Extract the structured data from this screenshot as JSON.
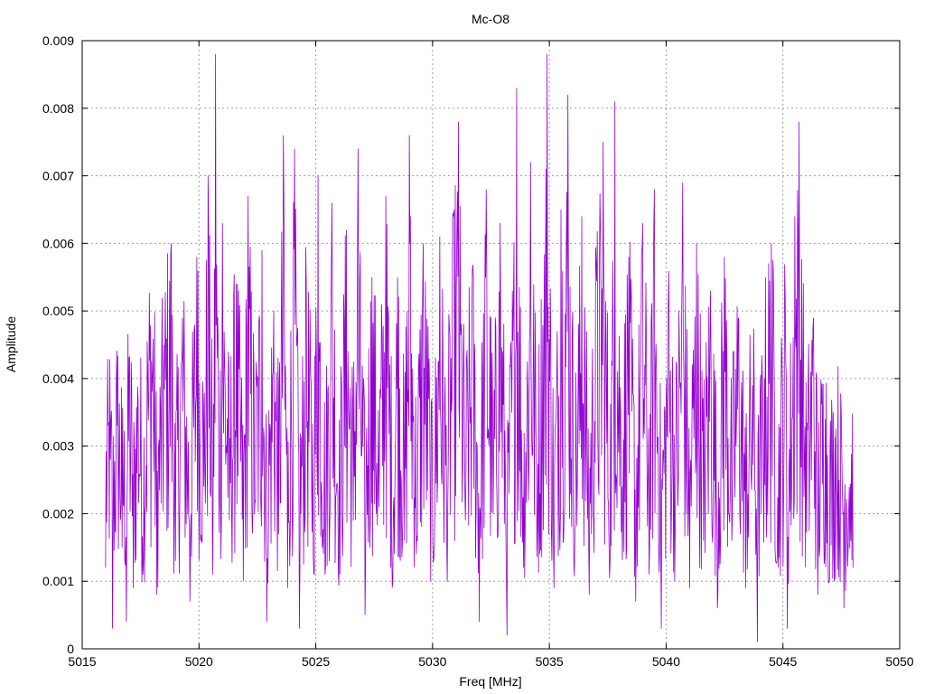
{
  "chart_data": {
    "type": "line",
    "title": "Mc-O8",
    "xlabel": "Freq [MHz]",
    "ylabel": "Amplitude",
    "xlim": [
      5015,
      5050
    ],
    "ylim": [
      0,
      0.009
    ],
    "xticks": [
      "5015",
      "5020",
      "5025",
      "5030",
      "5035",
      "5040",
      "5045",
      "5050"
    ],
    "yticks": [
      "0",
      "0.001",
      "0.002",
      "0.003",
      "0.004",
      "0.005",
      "0.006",
      "0.007",
      "0.008",
      "0.009"
    ],
    "grid": true,
    "series": [
      {
        "color": "#9400d3",
        "x_range": [
          5016,
          5048
        ],
        "points": [
          [
            5016.0,
            0.0012
          ],
          [
            5016.2,
            0.0028
          ],
          [
            5016.3,
            0.0003
          ],
          [
            5016.5,
            0.0033
          ],
          [
            5016.7,
            0.0015
          ],
          [
            5016.9,
            0.0004
          ],
          [
            5017.0,
            0.0043
          ],
          [
            5017.2,
            0.0009
          ],
          [
            5017.4,
            0.0037
          ],
          [
            5017.6,
            0.0011
          ],
          [
            5017.8,
            0.0041
          ],
          [
            5018.0,
            0.0063
          ],
          [
            5018.2,
            0.0008
          ],
          [
            5018.5,
            0.0045
          ],
          [
            5018.8,
            0.006
          ],
          [
            5019.0,
            0.0013
          ],
          [
            5019.3,
            0.0049
          ],
          [
            5019.6,
            0.0007
          ],
          [
            5019.9,
            0.0058
          ],
          [
            5020.2,
            0.0024
          ],
          [
            5020.4,
            0.007
          ],
          [
            5020.6,
            0.0011
          ],
          [
            5020.7,
            0.0088
          ],
          [
            5020.9,
            0.0027
          ],
          [
            5021.0,
            0.0063
          ],
          [
            5021.3,
            0.0019
          ],
          [
            5021.6,
            0.0054
          ],
          [
            5021.9,
            0.001
          ],
          [
            5022.1,
            0.0067
          ],
          [
            5022.4,
            0.0022
          ],
          [
            5022.7,
            0.0059
          ],
          [
            5022.9,
            0.0004
          ],
          [
            5023.2,
            0.005
          ],
          [
            5023.4,
            0.0017
          ],
          [
            5023.6,
            0.0076
          ],
          [
            5023.8,
            0.0009
          ],
          [
            5024.1,
            0.0074
          ],
          [
            5024.3,
            0.0003
          ],
          [
            5024.6,
            0.0054
          ],
          [
            5024.9,
            0.0014
          ],
          [
            5025.1,
            0.007
          ],
          [
            5025.4,
            0.0011
          ],
          [
            5025.7,
            0.0066
          ],
          [
            5026.0,
            0.0006
          ],
          [
            5026.3,
            0.0062
          ],
          [
            5026.6,
            0.0019
          ],
          [
            5026.8,
            0.0074
          ],
          [
            5027.1,
            0.0005
          ],
          [
            5027.4,
            0.0055
          ],
          [
            5027.7,
            0.0021
          ],
          [
            5028.0,
            0.0067
          ],
          [
            5028.3,
            0.001
          ],
          [
            5028.5,
            0.0055
          ],
          [
            5028.8,
            0.0016
          ],
          [
            5029.0,
            0.0076
          ],
          [
            5029.3,
            0.0014
          ],
          [
            5029.6,
            0.006
          ],
          [
            5029.9,
            0.0023
          ],
          [
            5030.0,
            0.0001
          ],
          [
            5030.3,
            0.0061
          ],
          [
            5030.6,
            0.0016
          ],
          [
            5030.9,
            0.0064
          ],
          [
            5031.1,
            0.0078
          ],
          [
            5031.4,
            0.0019
          ],
          [
            5031.7,
            0.0056
          ],
          [
            5032.0,
            0.0004
          ],
          [
            5032.3,
            0.0068
          ],
          [
            5032.6,
            0.002
          ],
          [
            5032.9,
            0.0063
          ],
          [
            5033.2,
            0.0002
          ],
          [
            5033.6,
            0.0083
          ],
          [
            5033.9,
            0.0012
          ],
          [
            5034.2,
            0.0072
          ],
          [
            5034.5,
            0.0018
          ],
          [
            5034.9,
            0.0088
          ],
          [
            5035.2,
            0.0009
          ],
          [
            5035.5,
            0.0065
          ],
          [
            5035.8,
            0.0082
          ],
          [
            5036.1,
            0.0016
          ],
          [
            5036.4,
            0.0064
          ],
          [
            5036.7,
            0.0008
          ],
          [
            5037.0,
            0.0057
          ],
          [
            5037.3,
            0.0075
          ],
          [
            5037.6,
            0.0013
          ],
          [
            5037.8,
            0.0081
          ],
          [
            5038.1,
            0.0024
          ],
          [
            5038.4,
            0.0058
          ],
          [
            5038.7,
            0.0007
          ],
          [
            5039.0,
            0.0063
          ],
          [
            5039.3,
            0.0015
          ],
          [
            5039.5,
            0.0068
          ],
          [
            5039.8,
            0.0003
          ],
          [
            5040.1,
            0.0051
          ],
          [
            5040.4,
            0.0018
          ],
          [
            5040.7,
            0.0069
          ],
          [
            5041.0,
            0.0009
          ],
          [
            5041.3,
            0.006
          ],
          [
            5041.6,
            0.0016
          ],
          [
            5041.9,
            0.0053
          ],
          [
            5042.2,
            0.0006
          ],
          [
            5042.5,
            0.0058
          ],
          [
            5042.8,
            0.0016
          ],
          [
            5043.1,
            0.0049
          ],
          [
            5043.4,
            0.0009
          ],
          [
            5043.7,
            0.0039
          ],
          [
            5043.9,
            0.0001
          ],
          [
            5044.2,
            0.004
          ],
          [
            5044.5,
            0.006
          ],
          [
            5044.8,
            0.0012
          ],
          [
            5045.1,
            0.0052
          ],
          [
            5045.2,
            0.0003
          ],
          [
            5045.5,
            0.0064
          ],
          [
            5045.7,
            0.0078
          ],
          [
            5046.0,
            0.0015
          ],
          [
            5046.3,
            0.0049
          ],
          [
            5046.5,
            0.0008
          ],
          [
            5046.8,
            0.0034
          ],
          [
            5047.0,
            0.001
          ],
          [
            5047.3,
            0.0024
          ],
          [
            5047.6,
            0.0006
          ],
          [
            5047.9,
            0.0016
          ],
          [
            5048.0,
            0.0012
          ]
        ]
      }
    ]
  }
}
